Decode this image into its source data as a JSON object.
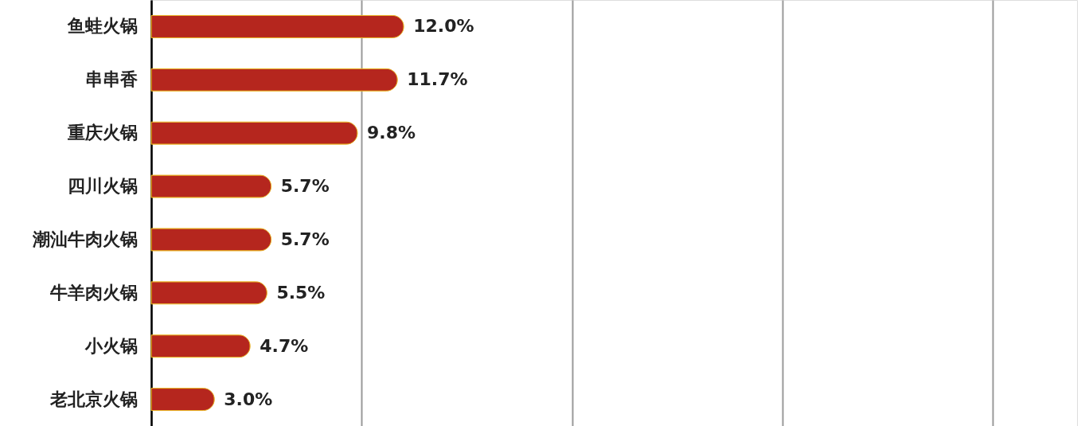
{
  "chart_data": {
    "type": "bar",
    "orientation": "horizontal",
    "categories": [
      "鱼蛙火锅",
      "串串香",
      "重庆火锅",
      "四川火锅",
      "潮汕牛肉火锅",
      "牛羊肉火锅",
      "小火锅",
      "老北京火锅"
    ],
    "values": [
      12.0,
      11.7,
      9.8,
      5.7,
      5.7,
      5.5,
      4.7,
      3.0
    ],
    "value_labels": [
      "12.0%",
      "11.7%",
      "9.8%",
      "5.7%",
      "5.7%",
      "5.5%",
      "4.7%",
      "3.0%"
    ],
    "color": "#b5261e",
    "xlim": [
      0,
      44
    ],
    "grid": "x",
    "tick_labels": "y"
  }
}
